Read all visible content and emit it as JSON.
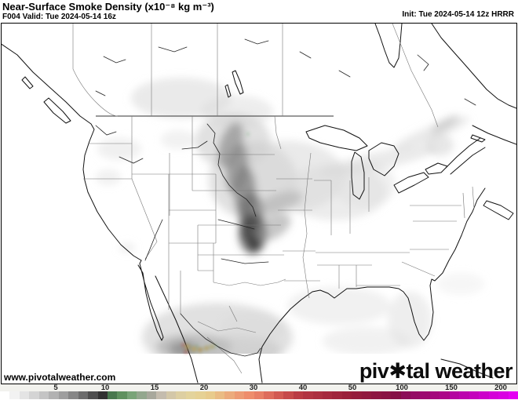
{
  "header": {
    "title": "Near-Surface Smoke Density (x10⁻⁸ kg m⁻³)",
    "subtitle_left": "F004 Valid: Tue 2024-05-14 16z",
    "subtitle_right": "Init: Tue 2024-05-14 12z HRRR",
    "model": "HRRR",
    "forecast_hour": "F004"
  },
  "map": {
    "watermark": "www.pivotalweather.com",
    "logo_text": "piv✱tal weather",
    "region": "North America (HRRR CONUS domain)"
  },
  "colorbar": {
    "tick_labels": [
      "5",
      "10",
      "15",
      "20",
      "30",
      "40",
      "50",
      "100",
      "150",
      "200"
    ],
    "segments": [
      "#ffffff",
      "#f2f2f2",
      "#e4e4e4",
      "#d4d4d4",
      "#c4c4c4",
      "#b2b2b2",
      "#9e9e9e",
      "#868686",
      "#6c6c6c",
      "#4e4e4e",
      "#323232",
      "#49784e",
      "#5f915f",
      "#79a478",
      "#93a78e",
      "#a8a89c",
      "#c4bcae",
      "#d3c7a8",
      "#ddcfa2",
      "#e3d39c",
      "#e6d194",
      "#e8cb8c",
      "#eabc84",
      "#ecab7c",
      "#ed9b74",
      "#ee8d6c",
      "#e87f66",
      "#de6c5c",
      "#d25a52",
      "#c64a4a",
      "#ba3c44",
      "#b23542",
      "#ac3040",
      "#a62a3e",
      "#a0253c",
      "#9a203a",
      "#951d3c",
      "#911a3e",
      "#8d1641",
      "#891343",
      "#851045",
      "#8c0e58",
      "#940c64",
      "#9c0a70",
      "#a4087c",
      "#ac0688",
      "#b404a0",
      "#bc03ae",
      "#c402bc",
      "#cc01ca",
      "#d400d8",
      "#d900e2",
      "#e400f2"
    ],
    "tick_start_x": 71,
    "tick_step_x": 63
  },
  "colors": {
    "frame": "#000000",
    "coastline": "#111111",
    "state_border": "#777777",
    "smoke_gray_dark": "#4a4a4a",
    "smoke_gray_light": "#dddddd",
    "fire_spot_red": "#c02020",
    "fire_spot_orange": "#dfa15c",
    "fire_spot_green": "#3e8f46",
    "scale_end_magenta": "#e400f2"
  }
}
